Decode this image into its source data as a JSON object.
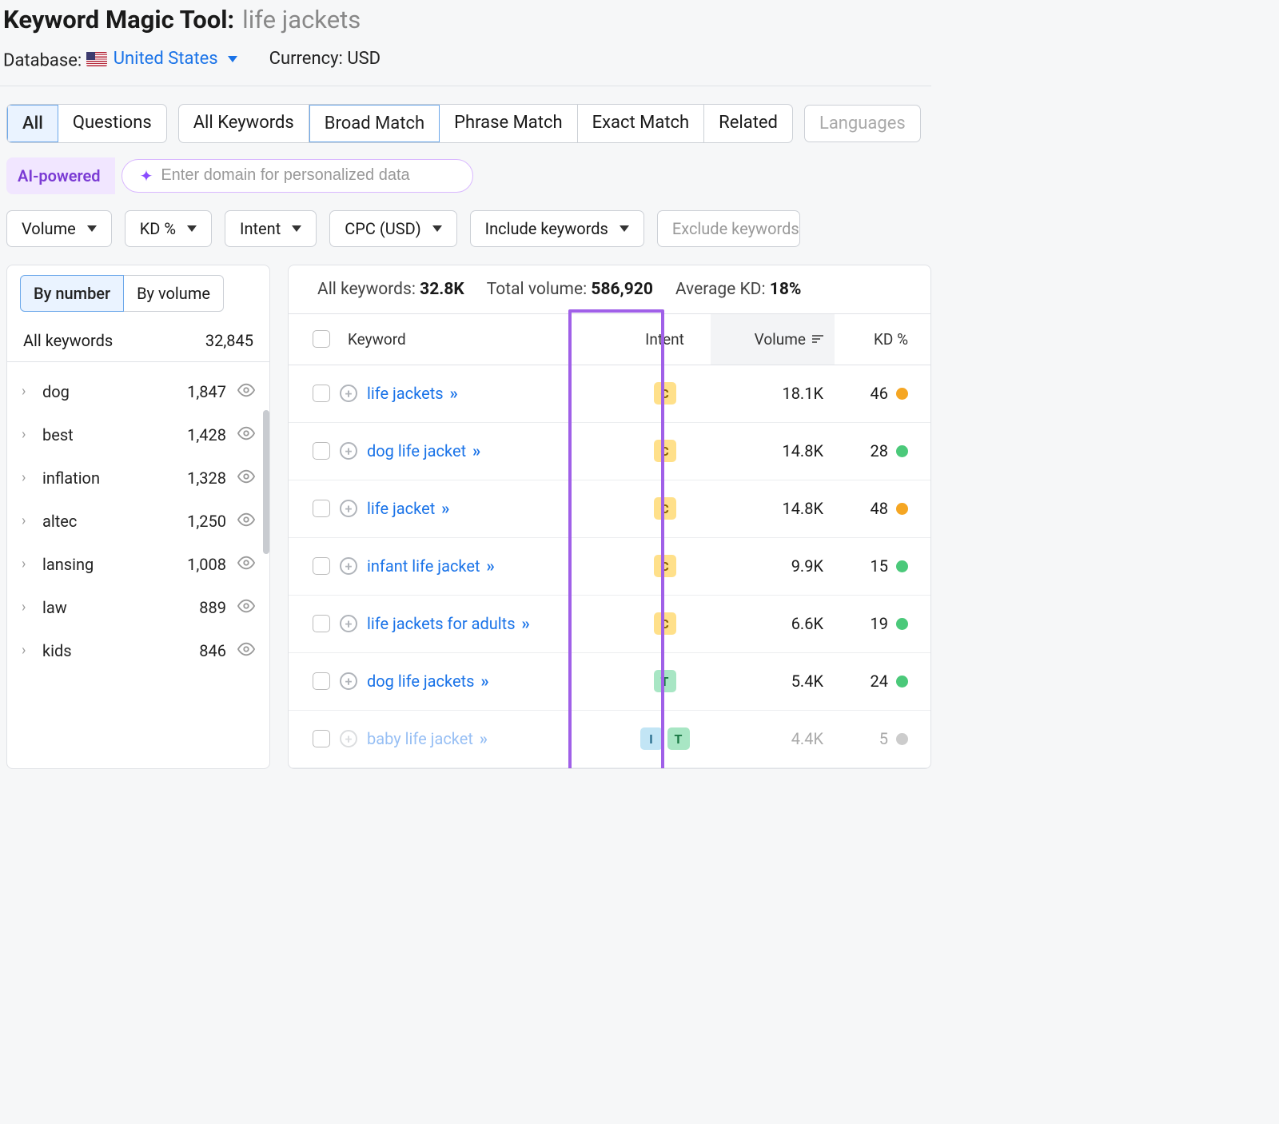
{
  "header": {
    "title_prefix": "Keyword Magic Tool:",
    "query": "life jackets",
    "db_label": "Database:",
    "db_value": "United States",
    "curr_label": "Currency: USD"
  },
  "tabs": {
    "group1": [
      "All",
      "Questions"
    ],
    "group1_active": "All",
    "group2": [
      "All Keywords",
      "Broad Match",
      "Phrase Match",
      "Exact Match",
      "Related"
    ],
    "group2_active": "Broad Match",
    "languages": "Languages"
  },
  "ai": {
    "badge": "AI-powered",
    "placeholder": "Enter domain for personalized data"
  },
  "filters": [
    "Volume",
    "KD %",
    "Intent",
    "CPC (USD)",
    "Include keywords",
    "Exclude keywords"
  ],
  "sidebar": {
    "sort_tabs": [
      "By number",
      "By volume"
    ],
    "sort_active": "By number",
    "all_label": "All keywords",
    "all_count": "32,845",
    "groups": [
      {
        "label": "dog",
        "count": "1,847"
      },
      {
        "label": "best",
        "count": "1,428"
      },
      {
        "label": "inflation",
        "count": "1,328"
      },
      {
        "label": "altec",
        "count": "1,250"
      },
      {
        "label": "lansing",
        "count": "1,008"
      },
      {
        "label": "law",
        "count": "889"
      },
      {
        "label": "kids",
        "count": "846"
      }
    ]
  },
  "summary": {
    "all_lbl": "All keywords:",
    "all_val": "32.8K",
    "vol_lbl": "Total volume:",
    "vol_val": "586,920",
    "kd_lbl": "Average KD:",
    "kd_val": "18%"
  },
  "columns": {
    "keyword": "Keyword",
    "intent": "Intent",
    "volume": "Volume",
    "kd": "KD %"
  },
  "rows": [
    {
      "keyword": "life jackets",
      "intents": [
        "C"
      ],
      "volume": "18.1K",
      "kd": "46",
      "kd_color": "orange"
    },
    {
      "keyword": "dog life jacket",
      "intents": [
        "C"
      ],
      "volume": "14.8K",
      "kd": "28",
      "kd_color": "green"
    },
    {
      "keyword": "life jacket",
      "intents": [
        "C"
      ],
      "volume": "14.8K",
      "kd": "48",
      "kd_color": "orange"
    },
    {
      "keyword": "infant life jacket",
      "intents": [
        "C"
      ],
      "volume": "9.9K",
      "kd": "15",
      "kd_color": "green"
    },
    {
      "keyword": "life jackets for adults",
      "intents": [
        "C"
      ],
      "volume": "6.6K",
      "kd": "19",
      "kd_color": "green"
    },
    {
      "keyword": "dog life jackets",
      "intents": [
        "T"
      ],
      "volume": "5.4K",
      "kd": "24",
      "kd_color": "green"
    },
    {
      "keyword": "baby life jacket",
      "intents": [
        "I",
        "T"
      ],
      "volume": "4.4K",
      "kd": "5",
      "kd_color": "gray",
      "faded": true
    }
  ]
}
